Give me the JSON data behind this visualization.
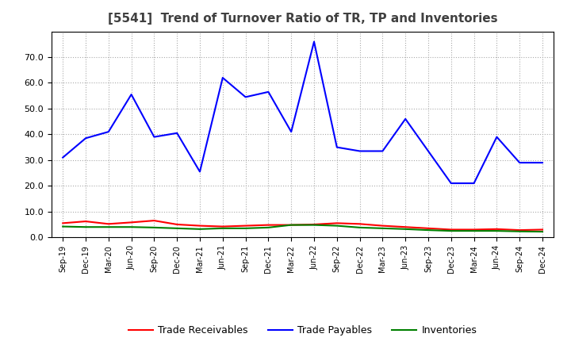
{
  "title": "[5541]  Trend of Turnover Ratio of TR, TP and Inventories",
  "x_labels": [
    "Sep-19",
    "Dec-19",
    "Mar-20",
    "Jun-20",
    "Sep-20",
    "Dec-20",
    "Mar-21",
    "Jun-21",
    "Sep-21",
    "Dec-21",
    "Mar-22",
    "Jun-22",
    "Sep-22",
    "Dec-22",
    "Mar-23",
    "Jun-23",
    "Sep-23",
    "Dec-23",
    "Mar-24",
    "Jun-24",
    "Sep-24",
    "Dec-24"
  ],
  "trade_receivables": [
    5.5,
    6.2,
    5.2,
    5.8,
    6.5,
    5.0,
    4.5,
    4.2,
    4.5,
    4.8,
    4.8,
    5.0,
    5.5,
    5.2,
    4.5,
    4.0,
    3.5,
    3.0,
    3.0,
    3.2,
    2.8,
    3.0
  ],
  "trade_payables": [
    31.0,
    38.5,
    41.0,
    55.5,
    39.0,
    40.5,
    25.5,
    62.0,
    54.5,
    56.5,
    41.0,
    76.0,
    35.0,
    33.5,
    33.5,
    46.0,
    33.5,
    21.0,
    21.0,
    39.0,
    29.0,
    29.0
  ],
  "inventories": [
    4.2,
    4.0,
    4.0,
    4.0,
    3.8,
    3.5,
    3.2,
    3.5,
    3.5,
    3.8,
    4.8,
    4.8,
    4.5,
    3.8,
    3.5,
    3.2,
    2.8,
    2.5,
    2.5,
    2.5,
    2.3,
    2.2
  ],
  "ylim": [
    0,
    80
  ],
  "yticks": [
    0.0,
    10.0,
    20.0,
    30.0,
    40.0,
    50.0,
    60.0,
    70.0
  ],
  "color_tr": "#ff0000",
  "color_tp": "#0000ff",
  "color_inv": "#008000",
  "background_color": "#ffffff",
  "grid_color": "#aaaaaa",
  "title_color": "#404040",
  "legend_labels": [
    "Trade Receivables",
    "Trade Payables",
    "Inventories"
  ]
}
